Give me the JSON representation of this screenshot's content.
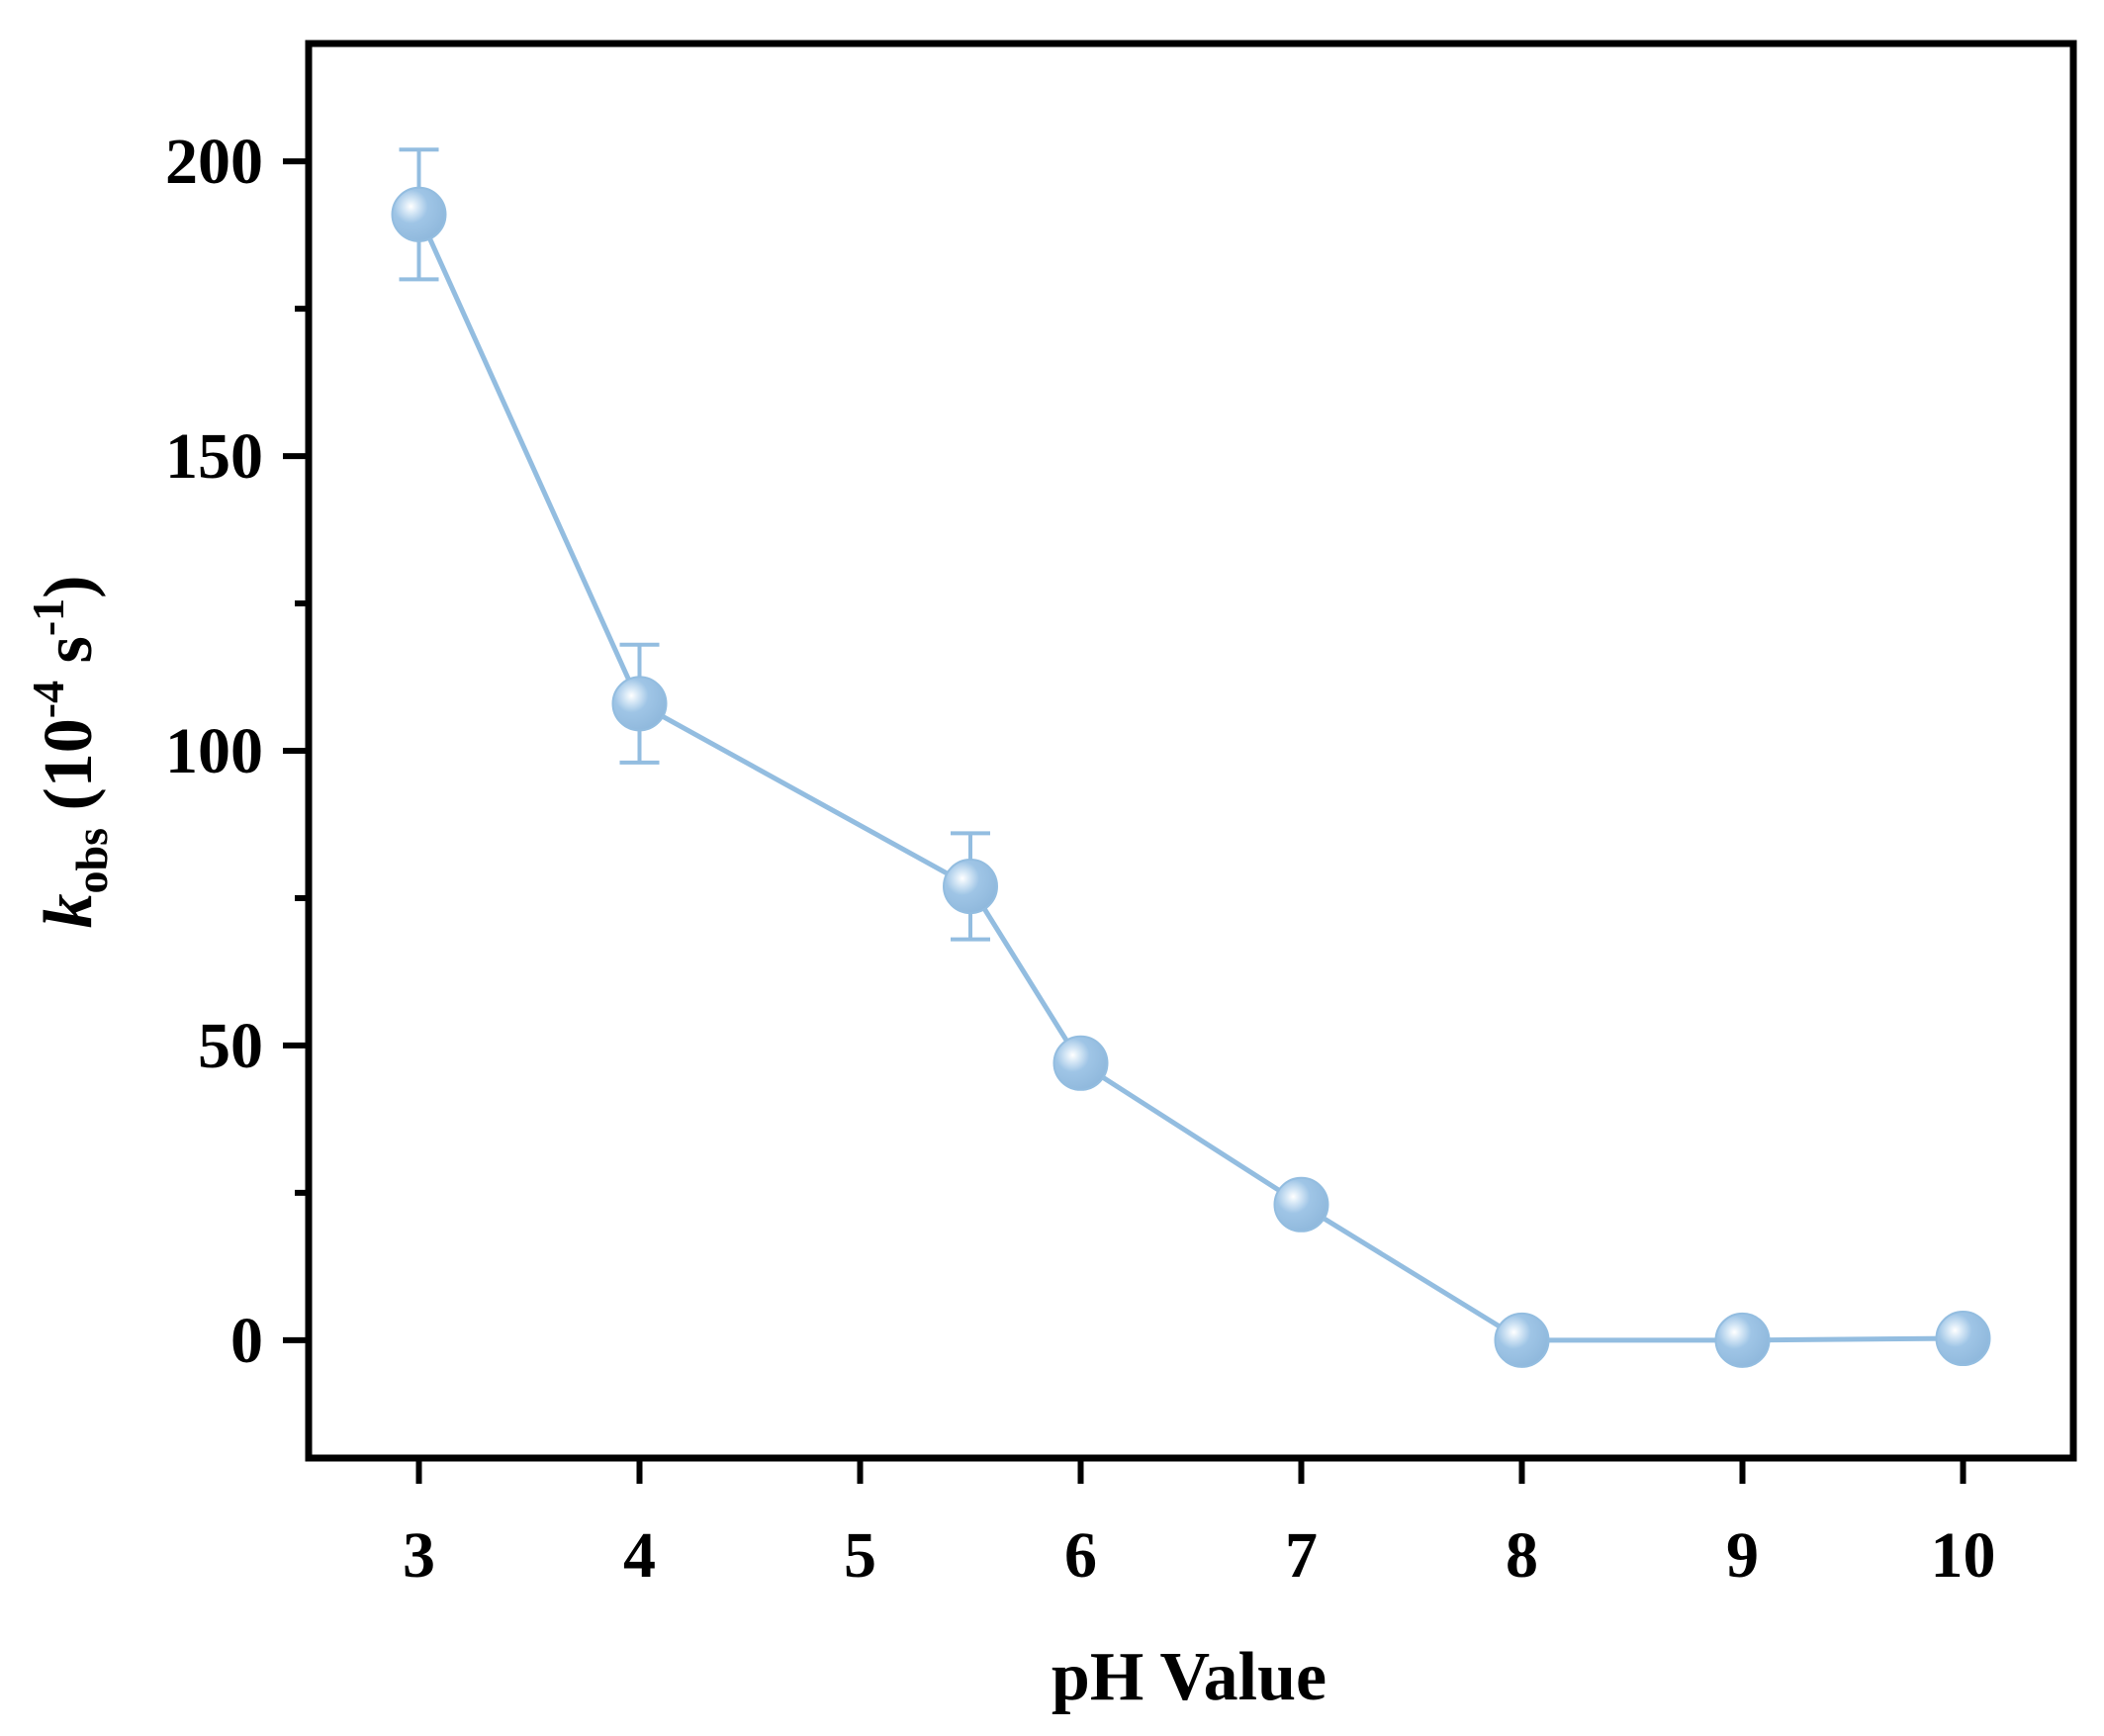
{
  "chart_data": {
    "type": "line",
    "xlabel": "pH Value",
    "ylabel": {
      "k": "k",
      "sub": "obs",
      "mid": " (10",
      "exp1": "-4",
      "mid2": " s",
      "exp2": "-1",
      "end": ")"
    },
    "xlim": [
      2.5,
      10.5
    ],
    "ylim": [
      -20,
      220
    ],
    "xticks": [
      3,
      4,
      5,
      6,
      7,
      8,
      9,
      10
    ],
    "xtick_labels": [
      "3",
      "4",
      "5",
      "6",
      "7",
      "8",
      "9",
      "10"
    ],
    "yticks": [
      0,
      50,
      100,
      150,
      200
    ],
    "ytick_labels": [
      "0",
      "50",
      "100",
      "150",
      "200"
    ],
    "yminor_ticks": [
      -25,
      25,
      75,
      125,
      175
    ],
    "grid": false,
    "series": [
      {
        "color": "#93bde0",
        "x": [
          3,
          4,
          5.5,
          6,
          7,
          8,
          9,
          10
        ],
        "y": [
          191,
          108,
          77,
          47,
          23,
          0,
          0,
          0.3
        ],
        "err": [
          11,
          10,
          9,
          2,
          1.5,
          0.5,
          0.5,
          0.5
        ]
      }
    ]
  }
}
